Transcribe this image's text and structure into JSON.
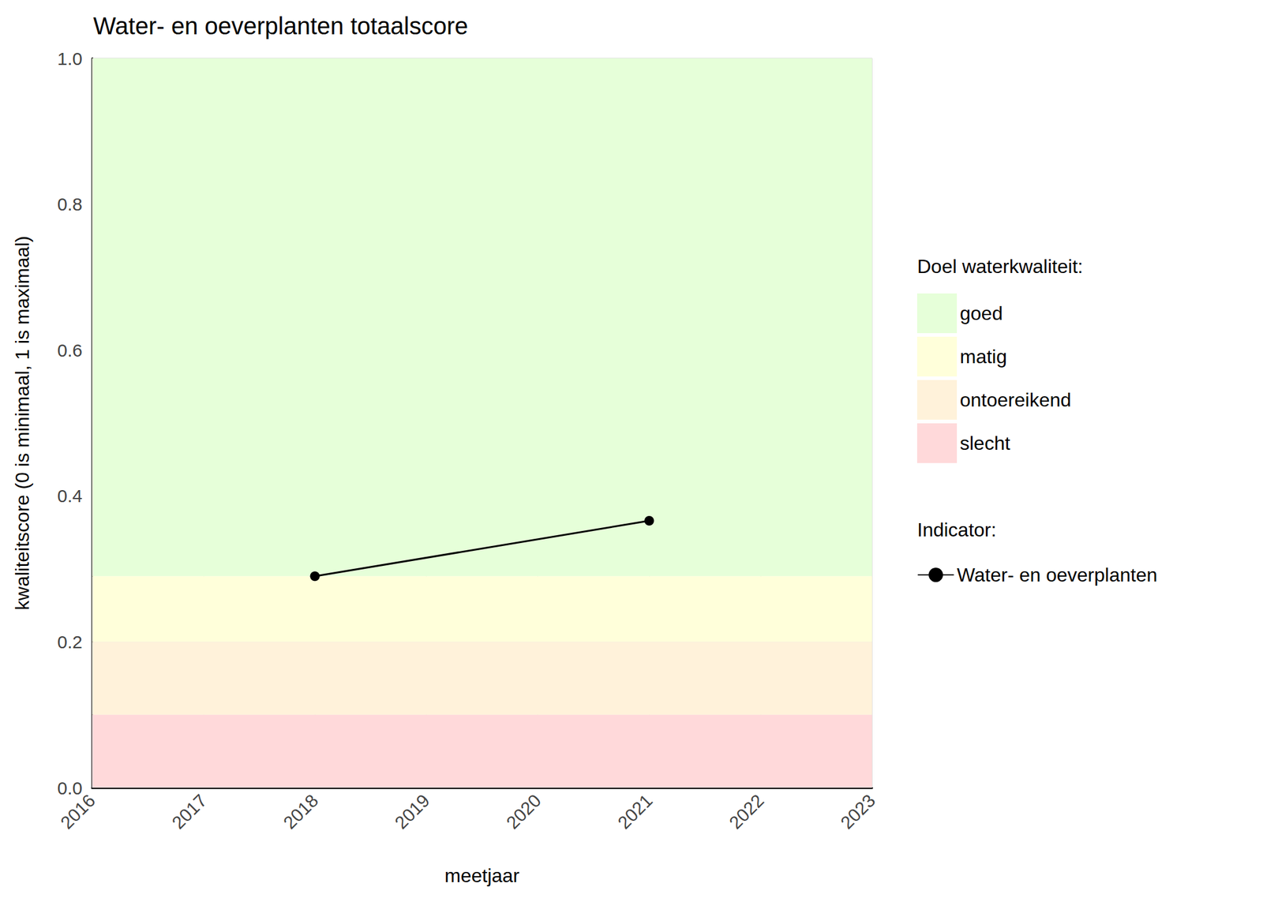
{
  "chart_data": {
    "type": "line",
    "title": "Water- en oeverplanten totaalscore",
    "x_label": "meetjaar",
    "y_label": "kwaliteitscore (0 is minimaal, 1 is maximaal)",
    "x": [
      2018,
      2021
    ],
    "series": [
      {
        "name": "Water- en oeverplanten",
        "color": "#000000",
        "values": [
          0.29,
          0.366
        ],
        "marker": "circle",
        "line_style": "solid"
      }
    ],
    "xlim": [
      2016,
      2023
    ],
    "xticks": [
      2016,
      2017,
      2018,
      2019,
      2020,
      2021,
      2022,
      2023
    ],
    "ylim": [
      0,
      1
    ],
    "yticks": [
      {
        "value": 0,
        "label": "0.0"
      },
      0.2,
      0.4,
      0.6,
      0.8,
      {
        "value": 1,
        "label": "1.0"
      }
    ],
    "grid": true,
    "legend_title": "Indicator:",
    "bands_title": "Doel waterkwaliteit:",
    "bands": [
      {
        "name": "goed",
        "color": "#E6FFD9",
        "from": 0.29,
        "to": 1
      },
      {
        "name": "matig",
        "color": "#FFFFDA",
        "from": 0.2,
        "to": 0.29
      },
      {
        "name": "ontoereikend",
        "color": "#FFF2DA",
        "from": 0.1,
        "to": 0.2
      },
      {
        "name": "slecht",
        "color": "#FFD9DA",
        "from": 0,
        "to": 0.1
      }
    ],
    "legend": "right"
  }
}
